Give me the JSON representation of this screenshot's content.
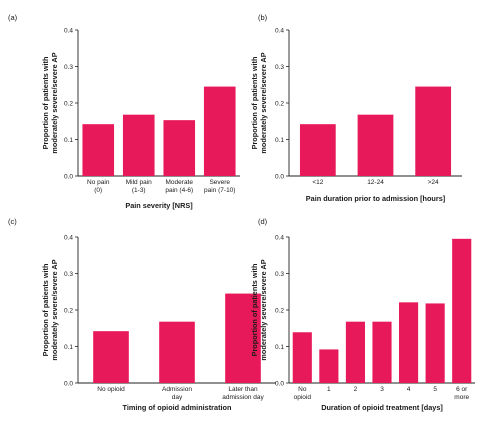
{
  "figure": {
    "bar_color": "#e8195a",
    "axis_color": "#222222"
  },
  "chart_data": [
    {
      "type": "bar",
      "panel_label": "(a)",
      "categories": [
        [
          "No pain",
          "(0)"
        ],
        [
          "Mild pain",
          "(1-3)"
        ],
        [
          "Moderate",
          "pain (4-6)"
        ],
        [
          "Severe",
          "pain (7-10)"
        ]
      ],
      "values": [
        0.142,
        0.168,
        0.153,
        0.245
      ],
      "xlabel": "Pain severity [NRS]",
      "ylabel": [
        "Proportion of patients with",
        "moderately severe/severe AP"
      ],
      "ylim": [
        0,
        0.4
      ],
      "yticks": [
        "0.0",
        "0.1",
        "0.2",
        "0.3",
        "0.4"
      ],
      "grid": false
    },
    {
      "type": "bar",
      "panel_label": "(b)",
      "categories": [
        [
          "<12"
        ],
        [
          "12-24"
        ],
        [
          ">24"
        ]
      ],
      "values": [
        0.142,
        0.168,
        0.245
      ],
      "xlabel": "Pain duration prior to admission [hours]",
      "ylabel": [
        "Proportion of patients with",
        "moderately severe/severe AP"
      ],
      "ylim": [
        0,
        0.4
      ],
      "yticks": [
        "0.0",
        "0.1",
        "0.2",
        "0.3",
        "0.4"
      ],
      "grid": false
    },
    {
      "type": "bar",
      "panel_label": "(c)",
      "categories": [
        [
          "No opioid"
        ],
        [
          "Admission",
          "day"
        ],
        [
          "Later than",
          "admission day"
        ]
      ],
      "values": [
        0.142,
        0.168,
        0.245
      ],
      "xlabel": "Timing of opioid administration",
      "ylabel": [
        "Proportion of patients with",
        "moderately severe/severe AP"
      ],
      "ylim": [
        0,
        0.4
      ],
      "yticks": [
        "0.0",
        "0.1",
        "0.2",
        "0.3",
        "0.4"
      ],
      "grid": false
    },
    {
      "type": "bar",
      "panel_label": "(d)",
      "categories": [
        [
          "No",
          "opioid"
        ],
        [
          "1"
        ],
        [
          "2"
        ],
        [
          "3"
        ],
        [
          "4"
        ],
        [
          "5"
        ],
        [
          "6 or",
          "more"
        ]
      ],
      "values": [
        0.139,
        0.092,
        0.168,
        0.168,
        0.221,
        0.218,
        0.395
      ],
      "xlabel": "Duration of opioid treatment [days]",
      "ylabel": [
        "Proportion of patients with",
        "moderately severe/severe AP"
      ],
      "ylim": [
        0,
        0.4
      ],
      "yticks": [
        "0.0",
        "0.1",
        "0.2",
        "0.3",
        "0.4"
      ],
      "grid": false
    }
  ]
}
